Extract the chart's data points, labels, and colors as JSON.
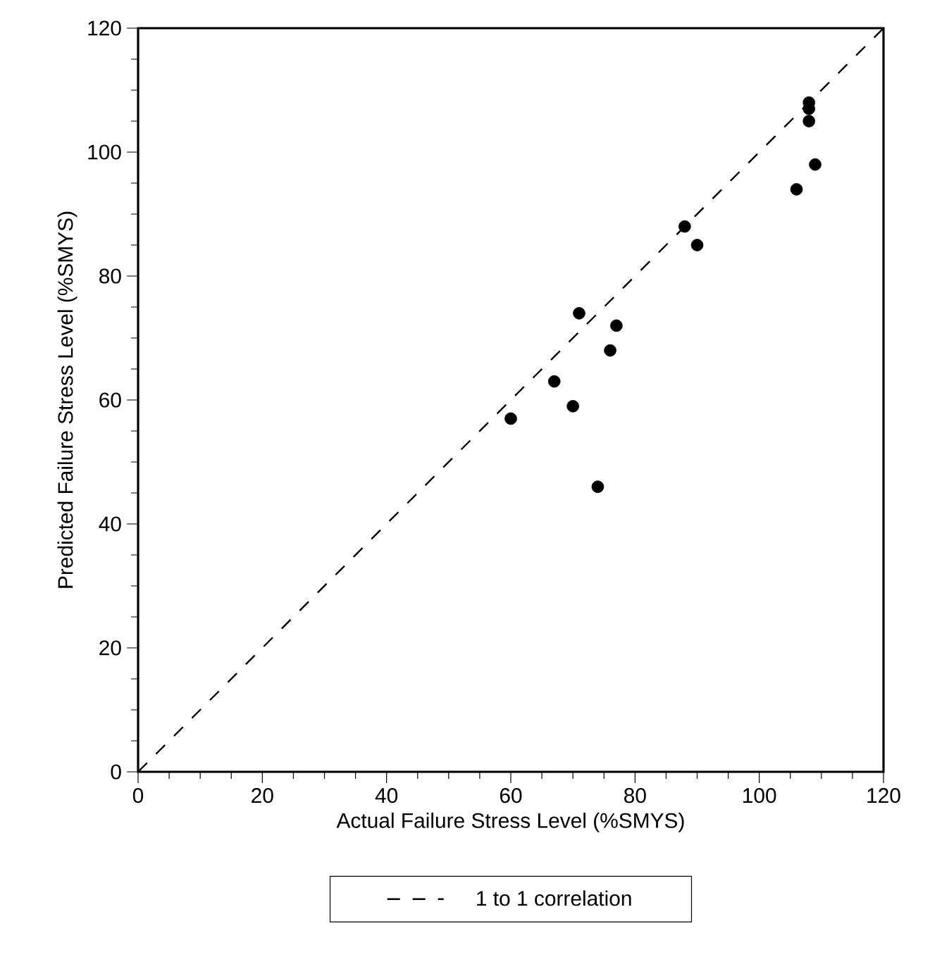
{
  "chart_data": {
    "type": "scatter",
    "xlabel": "Actual Failure Stress Level (%SMYS)",
    "ylabel": "Predicted Failure Stress Level (%SMYS)",
    "xlim": [
      0,
      120
    ],
    "ylim": [
      0,
      120
    ],
    "xticks": [
      0,
      20,
      40,
      60,
      80,
      100,
      120
    ],
    "yticks": [
      0,
      20,
      40,
      60,
      80,
      100,
      120
    ],
    "grid": false,
    "legend": "bottom",
    "series": [
      {
        "name": "1 to 1 correlation",
        "type": "line",
        "color": "#000000",
        "line_style": "dashed",
        "marker": "none",
        "x": [
          0,
          120
        ],
        "values": [
          0,
          120
        ]
      },
      {
        "type": "scatter",
        "color": "#000000",
        "marker": "circle",
        "x": [
          60,
          67,
          70,
          71,
          74,
          76,
          77,
          88,
          90,
          106,
          108,
          108,
          108,
          109
        ],
        "values": [
          57,
          63,
          59,
          74,
          46,
          68,
          72,
          88,
          85,
          94,
          105,
          107,
          108,
          98
        ]
      }
    ]
  }
}
